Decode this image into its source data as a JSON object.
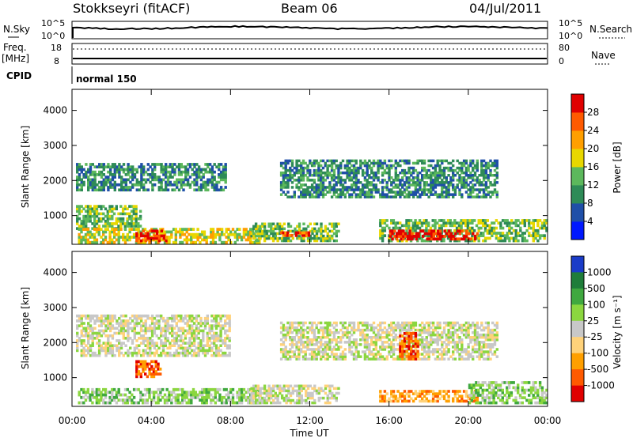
{
  "header": {
    "station": "Stokkseyri (fitACF)",
    "beam": "Beam 06",
    "date": "04/Jul/2011"
  },
  "noise_panel": {
    "left_label": "N.Sky",
    "left_ticks": [
      "10^5",
      "10^0"
    ],
    "right_label": "N.Search",
    "right_ticks": [
      "10^5",
      "10^0"
    ]
  },
  "freq_panel": {
    "left_label_top": "Freq.",
    "left_label_bottom": "[MHz]",
    "left_ticks": [
      "18",
      "8"
    ],
    "right_label": "Nave",
    "right_ticks": [
      "80",
      "0"
    ]
  },
  "cpid_panel": {
    "label": "CPID",
    "mode": "normal 150"
  },
  "chart_data": [
    {
      "type": "heatmap",
      "name": "power",
      "ylabel": "Slant Range [km]",
      "yticks": [
        "1000",
        "2000",
        "3000",
        "4000"
      ],
      "ylim": [
        180,
        4600
      ],
      "xlim": [
        0,
        24
      ],
      "colorbar": {
        "label": "Power [dB]",
        "ticks": [
          "4",
          "8",
          "12",
          "16",
          "20",
          "24",
          "28"
        ],
        "colors": [
          "#0018ff",
          "#1f4fa8",
          "#2e8b57",
          "#5cb85c",
          "#e8d700",
          "#ff9f00",
          "#ff5a00",
          "#e00000"
        ]
      },
      "regions": [
        {
          "t0": 0.2,
          "t1": 7.8,
          "r0": 1700,
          "r1": 2500,
          "level": 2
        },
        {
          "t0": 0.2,
          "t1": 3.5,
          "r0": 600,
          "r1": 1300,
          "level": 3
        },
        {
          "t0": 0.3,
          "t1": 9.5,
          "r0": 200,
          "r1": 650,
          "level": 4
        },
        {
          "t0": 3.2,
          "t1": 4.8,
          "r0": 250,
          "r1": 600,
          "level": 7
        },
        {
          "t0": 9.0,
          "t1": 13.5,
          "r0": 250,
          "r1": 800,
          "level": 3
        },
        {
          "t0": 10.5,
          "t1": 12.0,
          "r0": 400,
          "r1": 550,
          "level": 6
        },
        {
          "t0": 10.5,
          "t1": 21.5,
          "r0": 1500,
          "r1": 2600,
          "level": 2
        },
        {
          "t0": 15.5,
          "t1": 24.0,
          "r0": 250,
          "r1": 900,
          "level": 3
        },
        {
          "t0": 16.0,
          "t1": 20.5,
          "r0": 300,
          "r1": 600,
          "level": 7
        }
      ]
    },
    {
      "type": "heatmap",
      "name": "velocity",
      "xlabel": "Time UT",
      "ylabel": "Slant Range [km]",
      "yticks": [
        "1000",
        "2000",
        "3000",
        "4000"
      ],
      "xticks": [
        "00:00",
        "04:00",
        "08:00",
        "12:00",
        "16:00",
        "20:00",
        "00:00"
      ],
      "ylim": [
        180,
        4600
      ],
      "xlim": [
        0,
        24
      ],
      "colorbar": {
        "label": "Velocity [m s⁻¹]",
        "ticks": [
          "1000",
          "500",
          "100",
          "25",
          "-25",
          "-100",
          "-500",
          "-1000"
        ],
        "colors": [
          "#1a3cc8",
          "#1f7d3a",
          "#3fa83f",
          "#8bd63f",
          "#c8c8c8",
          "#ffd27a",
          "#ff9f00",
          "#ff5a00",
          "#e00000"
        ]
      },
      "regions": [
        {
          "t0": 0.2,
          "t1": 8.0,
          "r0": 1600,
          "r1": 2800,
          "level": 4
        },
        {
          "t0": 10.5,
          "t1": 21.5,
          "r0": 1500,
          "r1": 2600,
          "level": 4
        },
        {
          "t0": 0.3,
          "t1": 9.5,
          "r0": 250,
          "r1": 700,
          "level": 3
        },
        {
          "t0": 9.0,
          "t1": 13.5,
          "r0": 250,
          "r1": 800,
          "level": 4
        },
        {
          "t0": 15.5,
          "t1": 20.5,
          "r0": 300,
          "r1": 650,
          "level": 6
        },
        {
          "t0": 20.0,
          "t1": 24.0,
          "r0": 250,
          "r1": 900,
          "level": 3
        },
        {
          "t0": 3.2,
          "t1": 4.5,
          "r0": 1000,
          "r1": 1500,
          "level": 7
        },
        {
          "t0": 16.5,
          "t1": 17.5,
          "r0": 1500,
          "r1": 2300,
          "level": 7
        }
      ]
    }
  ]
}
